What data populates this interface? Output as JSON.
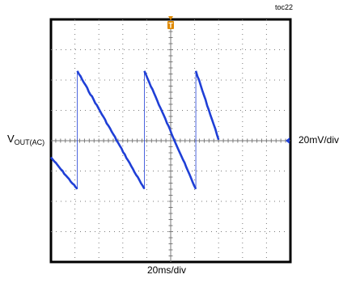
{
  "figure_tag": "toc22",
  "chart_data": {
    "type": "line",
    "title": "",
    "ylabel_main": "V",
    "ylabel_sub": "OUT(AC)",
    "yscale_label": "20mV/div",
    "xscale_label": "20ms/div",
    "divisions": {
      "x": 10,
      "y": 8
    },
    "grid": true,
    "trigger_marker": "T",
    "colors": {
      "trace": "#1f3fd6",
      "grid": "#7a7a7a",
      "frame": "#000000",
      "trigger": "#e08a00"
    },
    "series": [
      {
        "x_div": [
          0,
          1.1,
          1.1,
          3.9,
          3.9,
          6.05,
          6.05,
          7.0
        ],
        "y_div": [
          -0.55,
          -1.6,
          2.3,
          -1.6,
          2.3,
          -1.6,
          2.3,
          0.05
        ]
      }
    ]
  }
}
